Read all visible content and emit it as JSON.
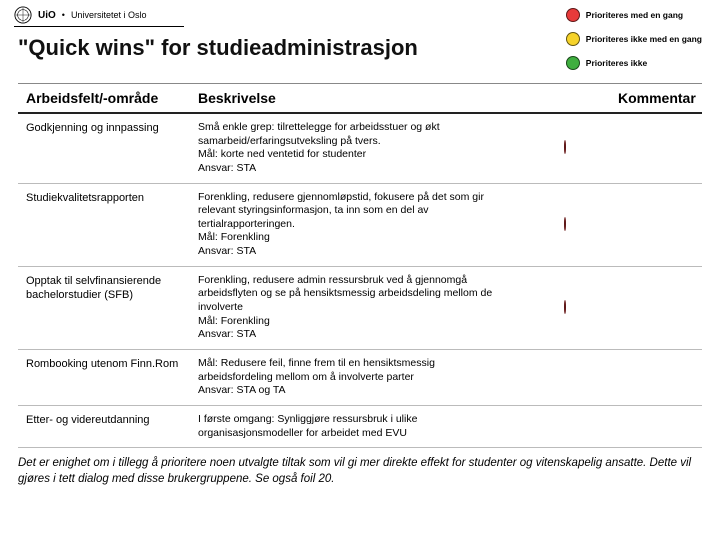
{
  "brand": {
    "prefix": "UiO",
    "bullet": "•",
    "name": "Universitetet i Oslo"
  },
  "title": "\"Quick wins\" for studieadministrasjon",
  "legend": {
    "items": [
      {
        "label": "Prioriteres med en gang",
        "color": "#e83a3a"
      },
      {
        "label": "Prioriteres ikke med en gang",
        "color": "#f6d32a"
      },
      {
        "label": "Prioriteres ikke",
        "color": "#3fae3f"
      }
    ]
  },
  "colors": {
    "red": "#e83a3a",
    "yellow": "#f6d32a",
    "green": "#3fae3f",
    "header_rule": "#222222",
    "row_rule": "#bbbbbb",
    "background": "#ffffff"
  },
  "columns": {
    "area": "Arbeidsfelt/-område",
    "desc": "Beskrivelse",
    "comment": "Kommentar"
  },
  "rows": [
    {
      "area": "Godkjenning og innpassing",
      "desc": "Små enkle grep: tilrettelegge for arbeidsstuer og økt samarbeid/erfaringsutveksling på tvers.\nMål: korte ned ventetid for studenter\nAnsvar: STA",
      "priority": "red"
    },
    {
      "area": "Studiekvalitetsrapporten",
      "desc": "Forenkling, redusere gjennomløpstid, fokusere på det som gir relevant styringsinformasjon, ta inn som en del av tertialrapporteringen.\nMål: Forenkling\nAnsvar: STA",
      "priority": "red"
    },
    {
      "area": "Opptak til selvfinansierende bachelorstudier (SFB)",
      "desc": "Forenkling, redusere admin ressursbruk ved å gjennomgå arbeidsflyten og se på hensiktsmessig arbeidsdeling mellom de involverte\nMål: Forenkling\nAnsvar: STA",
      "priority": "red"
    },
    {
      "area": "Rombooking utenom Finn.Rom",
      "desc": "Mål: Redusere feil, finne frem til en hensiktsmessig arbeidsfordeling mellom om å involverte parter\nAnsvar: STA og TA",
      "priority": ""
    },
    {
      "area": "Etter- og videreutdanning",
      "desc": "I første omgang: Synliggjøre ressursbruk i ulike organisasjonsmodeller for arbeidet med EVU",
      "priority": ""
    }
  ],
  "footnote": "Det er enighet om i tillegg å prioritere noen utvalgte tiltak som vil gi mer direkte effekt for studenter og vitenskapelig ansatte. Dette vil gjøres i tett dialog med disse brukergruppene. Se også foil 20."
}
